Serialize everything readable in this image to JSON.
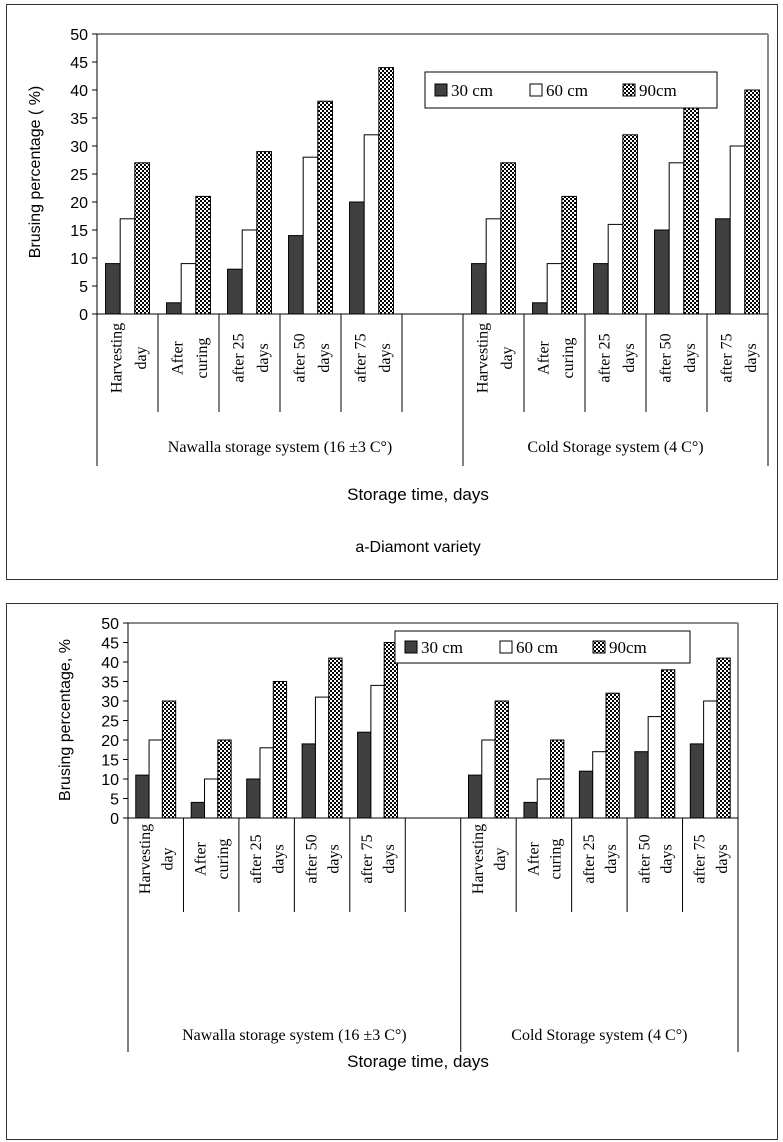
{
  "charts": [
    {
      "ylabel": "Brusing percentage ( %)",
      "xlabel": "Storage time, days",
      "subtitle": "a-Diamont variety"
    },
    {
      "ylabel": "Brusing percentage, %",
      "xlabel": "Storage time, days",
      "subtitle": ""
    }
  ],
  "colors": {
    "s30": "#404040",
    "s60": "#ffffff",
    "s90": "checkered"
  },
  "chart_data": [
    {
      "type": "bar",
      "title": "",
      "subtitle": "a-Diamont variety",
      "xlabel": "Storage time, days",
      "ylabel": "Brusing percentage ( %)",
      "ylim": [
        0,
        50
      ],
      "yticks": [
        0,
        5,
        10,
        15,
        20,
        25,
        30,
        35,
        40,
        45,
        50
      ],
      "grid": false,
      "legend": "top-right",
      "groups": [
        {
          "name": "Nawalla storage system (16 ±3 C°)",
          "categories": [
            [
              "Harvesting",
              "day"
            ],
            [
              "After",
              "curing"
            ],
            [
              "after 25",
              "days"
            ],
            [
              "after 50",
              "days"
            ],
            [
              "after 75",
              "days"
            ],
            [
              "",
              ""
            ]
          ],
          "series": [
            {
              "name": "30 cm",
              "values": [
                9,
                2,
                8,
                14,
                20
              ]
            },
            {
              "name": "60 cm",
              "values": [
                17,
                9,
                15,
                28,
                32
              ]
            },
            {
              "name": "90cm",
              "values": [
                27,
                21,
                29,
                38,
                44
              ]
            }
          ]
        },
        {
          "name": "Cold Storage system (4 C°)",
          "categories": [
            [
              "Harvesting",
              "day"
            ],
            [
              "After",
              "curing"
            ],
            [
              "after 25",
              "days"
            ],
            [
              "after 50",
              "days"
            ],
            [
              "after 75",
              "days"
            ]
          ],
          "series": [
            {
              "name": "30 cm",
              "values": [
                9,
                2,
                9,
                15,
                17
              ]
            },
            {
              "name": "60 cm",
              "values": [
                17,
                9,
                16,
                27,
                30
              ]
            },
            {
              "name": "90cm",
              "values": [
                27,
                21,
                32,
                37,
                40
              ]
            }
          ]
        }
      ]
    },
    {
      "type": "bar",
      "title": "",
      "xlabel": "Storage time, days",
      "ylabel": "Brusing percentage, %",
      "ylim": [
        0,
        50
      ],
      "yticks": [
        0,
        5,
        10,
        15,
        20,
        25,
        30,
        35,
        40,
        45,
        50
      ],
      "grid": false,
      "legend": "top-right",
      "groups": [
        {
          "name": "Nawalla storage system (16 ±3 C°)",
          "categories": [
            [
              "Harvesting",
              "day"
            ],
            [
              "After",
              "curing"
            ],
            [
              "after 25",
              "days"
            ],
            [
              "after 50",
              "days"
            ],
            [
              "after 75",
              "days"
            ],
            [
              "",
              ""
            ]
          ],
          "series": [
            {
              "name": "30 cm",
              "values": [
                11,
                4,
                10,
                19,
                22
              ]
            },
            {
              "name": "60 cm",
              "values": [
                20,
                10,
                18,
                31,
                34
              ]
            },
            {
              "name": "90cm",
              "values": [
                30,
                20,
                35,
                41,
                45
              ]
            }
          ]
        },
        {
          "name": "Cold Storage system (4 C°)",
          "categories": [
            [
              "Harvesting",
              "day"
            ],
            [
              "After",
              "curing"
            ],
            [
              "after 25",
              "days"
            ],
            [
              "after 50",
              "days"
            ],
            [
              "after 75",
              "days"
            ]
          ],
          "series": [
            {
              "name": "30 cm",
              "values": [
                11,
                4,
                12,
                17,
                19
              ]
            },
            {
              "name": "60 cm",
              "values": [
                20,
                10,
                17,
                26,
                30
              ]
            },
            {
              "name": "90cm",
              "values": [
                30,
                20,
                32,
                38,
                41
              ]
            }
          ]
        }
      ]
    }
  ]
}
